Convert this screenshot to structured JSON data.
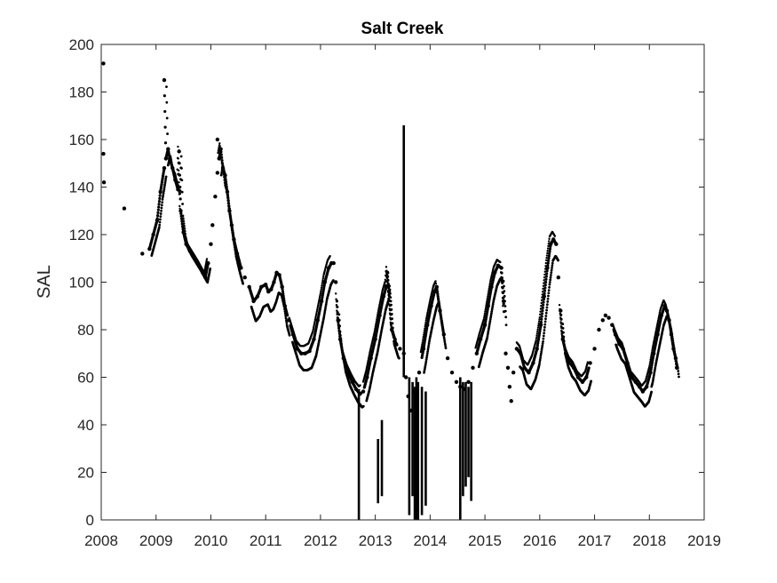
{
  "chart_data": {
    "type": "scatter",
    "title": "Salt Creek",
    "xlabel": "",
    "ylabel": "SAL",
    "xlim": [
      2008,
      2019
    ],
    "ylim": [
      0,
      200
    ],
    "x_ticks": [
      "2008",
      "2009",
      "2010",
      "2011",
      "2012",
      "2013",
      "2014",
      "2015",
      "2016",
      "2017",
      "2018",
      "2019"
    ],
    "y_ticks": [
      "0",
      "20",
      "40",
      "60",
      "80",
      "100",
      "120",
      "140",
      "160",
      "180",
      "200"
    ],
    "grid": false,
    "legend": "none",
    "marker_color": "#000000",
    "series": [
      {
        "points": [
          [
            2008.04,
            192
          ],
          [
            2008.04,
            154
          ],
          [
            2008.05,
            142
          ],
          [
            2008.42,
            131
          ],
          [
            2008.75,
            112
          ],
          [
            2008.88,
            114
          ],
          [
            2008.95,
            120
          ],
          [
            2009.02,
            126
          ],
          [
            2009.08,
            138
          ],
          [
            2009.15,
            148
          ],
          [
            2009.18,
            152
          ],
          [
            2009.22,
            156
          ],
          [
            2009.25,
            152
          ],
          [
            2009.15,
            185
          ],
          [
            2009.3,
            148
          ],
          [
            2009.35,
            143
          ],
          [
            2009.4,
            139
          ],
          [
            2009.42,
            155
          ],
          [
            2009.45,
            130
          ],
          [
            2009.5,
            121
          ],
          [
            2009.55,
            116
          ],
          [
            2009.62,
            113
          ],
          [
            2009.7,
            110
          ],
          [
            2009.78,
            107
          ],
          [
            2009.85,
            104
          ],
          [
            2009.9,
            102
          ],
          [
            2009.95,
            108
          ],
          [
            2010.0,
            116
          ],
          [
            2010.03,
            124
          ],
          [
            2010.08,
            136
          ],
          [
            2010.12,
            146
          ],
          [
            2010.15,
            152
          ],
          [
            2010.18,
            156
          ],
          [
            2010.12,
            160
          ],
          [
            2010.22,
            148
          ],
          [
            2010.26,
            145
          ],
          [
            2010.3,
            138
          ],
          [
            2010.34,
            130
          ],
          [
            2010.38,
            124
          ],
          [
            2010.42,
            118
          ],
          [
            2010.48,
            112
          ],
          [
            2010.55,
            106
          ],
          [
            2010.62,
            102
          ],
          [
            2010.7,
            98
          ],
          [
            2010.78,
            92
          ],
          [
            2010.85,
            94
          ],
          [
            2010.92,
            98
          ],
          [
            2011.0,
            99
          ],
          [
            2011.05,
            96
          ],
          [
            2011.1,
            97
          ],
          [
            2011.15,
            100
          ],
          [
            2011.2,
            104
          ],
          [
            2011.25,
            103
          ],
          [
            2011.3,
            98
          ],
          [
            2011.35,
            90
          ],
          [
            2011.42,
            84
          ],
          [
            2011.5,
            78
          ],
          [
            2011.58,
            72
          ],
          [
            2011.65,
            70
          ],
          [
            2011.72,
            70
          ],
          [
            2011.8,
            71
          ],
          [
            2011.88,
            76
          ],
          [
            2011.95,
            84
          ],
          [
            2012.02,
            92
          ],
          [
            2012.08,
            100
          ],
          [
            2012.15,
            106
          ],
          [
            2012.2,
            108
          ],
          [
            2012.24,
            108
          ],
          [
            2012.28,
            100
          ],
          [
            2012.32,
            84
          ],
          [
            2012.36,
            76
          ],
          [
            2012.42,
            68
          ],
          [
            2012.5,
            62
          ],
          [
            2012.58,
            58
          ],
          [
            2012.65,
            55
          ],
          [
            2012.72,
            53
          ],
          [
            2012.78,
            54
          ],
          [
            2012.85,
            60
          ],
          [
            2012.92,
            68
          ],
          [
            2013.0,
            76
          ],
          [
            2013.08,
            86
          ],
          [
            2013.15,
            94
          ],
          [
            2013.2,
            98
          ],
          [
            2013.22,
            104
          ],
          [
            2013.25,
            96
          ],
          [
            2013.3,
            80
          ],
          [
            2013.38,
            74
          ],
          [
            2013.45,
            72
          ],
          [
            2013.52,
            70
          ],
          [
            2013.56,
            60
          ],
          [
            2013.6,
            52
          ],
          [
            2013.65,
            46
          ],
          [
            2013.72,
            54
          ],
          [
            2013.8,
            62
          ],
          [
            2013.88,
            72
          ],
          [
            2013.95,
            82
          ],
          [
            2014.02,
            90
          ],
          [
            2014.08,
            96
          ],
          [
            2014.12,
            98
          ],
          [
            2014.18,
            88
          ],
          [
            2014.25,
            78
          ],
          [
            2014.32,
            68
          ],
          [
            2014.4,
            62
          ],
          [
            2014.48,
            58
          ],
          [
            2014.55,
            56
          ],
          [
            2014.62,
            55
          ],
          [
            2014.7,
            58
          ],
          [
            2014.78,
            64
          ],
          [
            2014.85,
            70
          ],
          [
            2014.92,
            76
          ],
          [
            2015.0,
            82
          ],
          [
            2015.06,
            90
          ],
          [
            2015.12,
            98
          ],
          [
            2015.18,
            104
          ],
          [
            2015.24,
            107
          ],
          [
            2015.3,
            106
          ],
          [
            2015.34,
            92
          ],
          [
            2015.38,
            70
          ],
          [
            2015.42,
            64
          ],
          [
            2015.45,
            56
          ],
          [
            2015.48,
            50
          ],
          [
            2015.52,
            62
          ],
          [
            2015.58,
            72
          ],
          [
            2015.65,
            70
          ],
          [
            2015.72,
            64
          ],
          [
            2015.8,
            62
          ],
          [
            2015.88,
            66
          ],
          [
            2015.95,
            72
          ],
          [
            2016.02,
            82
          ],
          [
            2016.08,
            94
          ],
          [
            2016.14,
            106
          ],
          [
            2016.2,
            116
          ],
          [
            2016.25,
            118
          ],
          [
            2016.3,
            116
          ],
          [
            2016.34,
            102
          ],
          [
            2016.38,
            88
          ],
          [
            2016.42,
            76
          ],
          [
            2016.48,
            70
          ],
          [
            2016.55,
            66
          ],
          [
            2016.62,
            64
          ],
          [
            2016.7,
            60
          ],
          [
            2016.78,
            58
          ],
          [
            2016.85,
            60
          ],
          [
            2016.92,
            66
          ],
          [
            2017.0,
            72
          ],
          [
            2017.08,
            80
          ],
          [
            2017.15,
            84
          ],
          [
            2017.2,
            86
          ],
          [
            2017.26,
            85
          ],
          [
            2017.32,
            82
          ],
          [
            2017.38,
            78
          ],
          [
            2017.45,
            74
          ],
          [
            2017.52,
            72
          ],
          [
            2017.6,
            66
          ],
          [
            2017.68,
            60
          ],
          [
            2017.75,
            58
          ],
          [
            2017.82,
            56
          ],
          [
            2017.88,
            54
          ],
          [
            2017.95,
            56
          ],
          [
            2018.02,
            62
          ],
          [
            2018.08,
            70
          ],
          [
            2018.15,
            78
          ],
          [
            2018.22,
            86
          ],
          [
            2018.28,
            90
          ],
          [
            2018.32,
            88
          ],
          [
            2018.36,
            84
          ],
          [
            2018.4,
            78
          ],
          [
            2018.44,
            72
          ],
          [
            2018.48,
            68
          ],
          [
            2018.5,
            64
          ]
        ],
        "bands": [
          [
            2008.88,
            2009.3,
            -4,
            4
          ],
          [
            2009.3,
            2009.95,
            -3,
            5
          ],
          [
            2010.15,
            2010.55,
            -10,
            6
          ],
          [
            2010.7,
            2011.4,
            -12,
            4
          ],
          [
            2011.45,
            2012.2,
            -10,
            8
          ],
          [
            2012.3,
            2012.75,
            -8,
            8
          ],
          [
            2012.8,
            2013.4,
            -8,
            6
          ],
          [
            2013.85,
            2014.25,
            -9,
            6
          ],
          [
            2014.85,
            2015.35,
            -8,
            6
          ],
          [
            2015.6,
            2016.3,
            -10,
            8
          ],
          [
            2016.38,
            2016.9,
            -8,
            6
          ],
          [
            2017.35,
            2018.0,
            -9,
            6
          ],
          [
            2018.0,
            2018.5,
            -6,
            6
          ]
        ],
        "spikes": [
          [
            2012.7,
            0,
            55
          ],
          [
            2013.05,
            7,
            34
          ],
          [
            2013.12,
            10,
            42
          ],
          [
            2013.52,
            60,
            166
          ],
          [
            2013.62,
            2,
            60
          ],
          [
            2013.68,
            10,
            58
          ],
          [
            2013.72,
            0,
            56
          ],
          [
            2013.75,
            0,
            60
          ],
          [
            2013.78,
            0,
            58
          ],
          [
            2013.85,
            2,
            56
          ],
          [
            2013.92,
            6,
            54
          ],
          [
            2014.55,
            0,
            60
          ],
          [
            2014.6,
            10,
            58
          ],
          [
            2014.65,
            14,
            58
          ],
          [
            2014.7,
            18,
            56
          ],
          [
            2014.75,
            8,
            58
          ]
        ]
      }
    ]
  }
}
